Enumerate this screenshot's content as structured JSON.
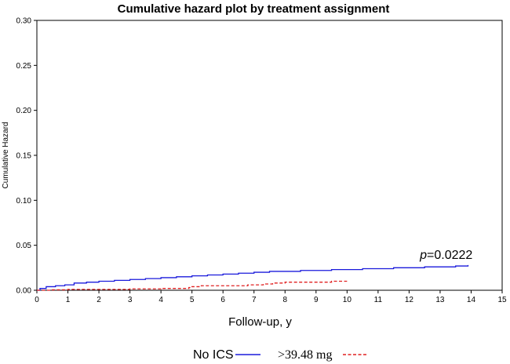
{
  "chart_data": {
    "type": "line",
    "title": "Cumulative hazard plot by treatment assignment",
    "xlabel": "Follow-up, y",
    "ylabel": "Cumulative Hazard",
    "xlim": [
      0,
      15
    ],
    "ylim": [
      0,
      0.3
    ],
    "x_ticks": [
      "0",
      "1",
      "2",
      "3",
      "4",
      "5",
      "6",
      "7",
      "8",
      "9",
      "10",
      "11",
      "12",
      "13",
      "14",
      "15"
    ],
    "y_ticks": [
      "0.00",
      "0.05",
      "0.10",
      "0.15",
      "0.20",
      "0.25",
      "0.30"
    ],
    "annotation": {
      "p_symbol": "p",
      "p_value": "=0.0222",
      "x": 12.6,
      "y": 0.035
    },
    "series": [
      {
        "name": "No ICS",
        "color": "#1a1adb",
        "dash": "solid",
        "points": [
          [
            0,
            0
          ],
          [
            0.1,
            0.002
          ],
          [
            0.3,
            0.004
          ],
          [
            0.6,
            0.005
          ],
          [
            0.9,
            0.006
          ],
          [
            1.2,
            0.008
          ],
          [
            1.6,
            0.009
          ],
          [
            2.0,
            0.01
          ],
          [
            2.5,
            0.011
          ],
          [
            3.0,
            0.012
          ],
          [
            3.5,
            0.013
          ],
          [
            4.0,
            0.014
          ],
          [
            4.5,
            0.015
          ],
          [
            5.0,
            0.016
          ],
          [
            5.5,
            0.017
          ],
          [
            6.0,
            0.018
          ],
          [
            6.5,
            0.019
          ],
          [
            7.0,
            0.02
          ],
          [
            7.5,
            0.021
          ],
          [
            8.0,
            0.021
          ],
          [
            8.5,
            0.022
          ],
          [
            9.0,
            0.022
          ],
          [
            9.5,
            0.023
          ],
          [
            10.0,
            0.023
          ],
          [
            10.5,
            0.024
          ],
          [
            11.0,
            0.024
          ],
          [
            11.5,
            0.025
          ],
          [
            12.0,
            0.025
          ],
          [
            12.5,
            0.026
          ],
          [
            13.0,
            0.026
          ],
          [
            13.5,
            0.027
          ],
          [
            13.9,
            0.028
          ]
        ]
      },
      {
        "name": ">39.48 mg",
        "color": "#e02020",
        "dash": "dashed",
        "points": [
          [
            0,
            0
          ],
          [
            0.5,
            0.0005
          ],
          [
            1.0,
            0.001
          ],
          [
            2.0,
            0.001
          ],
          [
            3.0,
            0.0015
          ],
          [
            4.0,
            0.002
          ],
          [
            4.8,
            0.002
          ],
          [
            4.9,
            0.003
          ],
          [
            5.0,
            0.004
          ],
          [
            5.3,
            0.005
          ],
          [
            6.0,
            0.005
          ],
          [
            6.8,
            0.006
          ],
          [
            7.1,
            0.006
          ],
          [
            7.3,
            0.007
          ],
          [
            7.6,
            0.008
          ],
          [
            8.0,
            0.009
          ],
          [
            9.0,
            0.009
          ],
          [
            9.5,
            0.01
          ],
          [
            10.0,
            0.01
          ]
        ]
      }
    ],
    "legend": [
      {
        "label": "No ICS",
        "color": "#1a1adb",
        "dash": "solid",
        "font": "sans"
      },
      {
        "label": ">39.48 mg",
        "color": "#e02020",
        "dash": "dashed",
        "font": "serif"
      }
    ],
    "legend_position": "bottom-center"
  }
}
